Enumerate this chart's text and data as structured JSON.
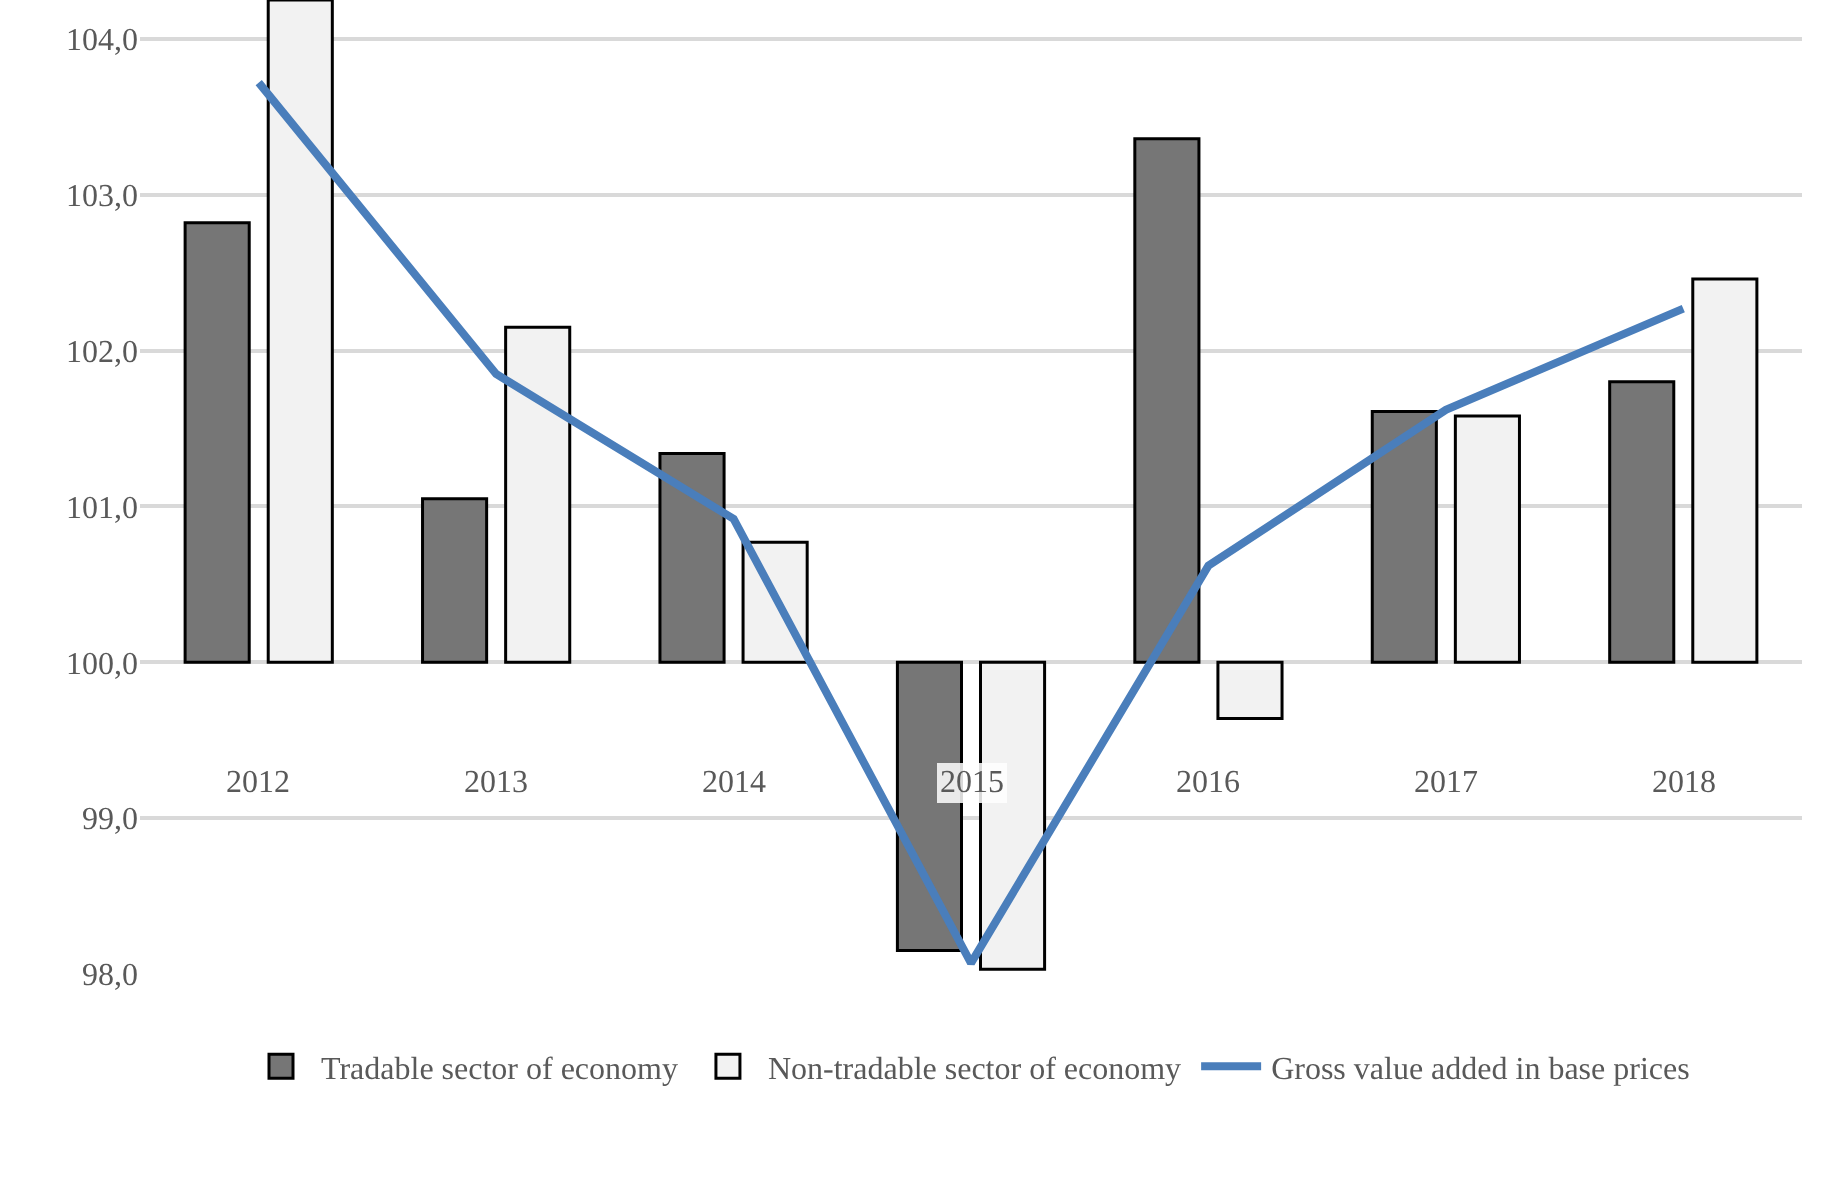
{
  "chart_data": {
    "type": "bar",
    "categories": [
      "2012",
      "2013",
      "2014",
      "2015",
      "2016",
      "2017",
      "2018"
    ],
    "series": [
      {
        "name": "Tradable sector of economy",
        "color": "#767676",
        "base": [
          100,
          100,
          100,
          100,
          100,
          100,
          100
        ],
        "values": [
          2.82,
          1.05,
          1.34,
          -1.85,
          3.36,
          1.61,
          1.8
        ]
      },
      {
        "name": "Non-tradable sector of economy",
        "color": "#f2f2f2",
        "base": [
          100,
          100,
          100,
          100,
          100,
          100,
          100
        ],
        "values": [
          4.25,
          2.15,
          0.77,
          -1.97,
          -0.36,
          1.58,
          2.46
        ]
      },
      {
        "name": "Gross value added in base prices",
        "type": "line",
        "color": "#4a7ebb",
        "values": [
          103.72,
          101.85,
          100.92,
          98.07,
          100.62,
          101.62,
          102.27
        ]
      }
    ],
    "ylim": [
      98,
      104.25
    ],
    "yticks": [
      {
        "value": 98,
        "label": "98,0"
      },
      {
        "value": 99,
        "label": "99,0"
      },
      {
        "value": 100,
        "label": "100,0"
      },
      {
        "value": 101,
        "label": "101,0"
      },
      {
        "value": 102,
        "label": "102,0"
      },
      {
        "value": 103,
        "label": "103,0"
      },
      {
        "value": 104,
        "label": "104,0"
      }
    ],
    "grid": "y",
    "legend": "bottom",
    "marker": "none"
  }
}
